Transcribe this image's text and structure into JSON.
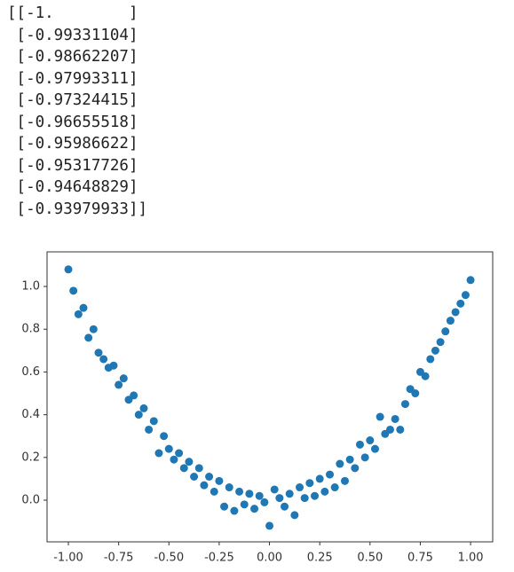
{
  "console_lines": [
    "[[-1.        ]",
    " [-0.99331104]",
    " [-0.98662207]",
    " [-0.97993311]",
    " [-0.97324415]",
    " [-0.96655518]",
    " [-0.95986622]",
    " [-0.95317726]",
    " [-0.94648829]",
    " [-0.93979933]]"
  ],
  "chart_data": {
    "type": "scatter",
    "color": "#1f77b4",
    "x": [
      -1,
      -0.975,
      -0.95,
      -0.925,
      -0.9,
      -0.875,
      -0.85,
      -0.825,
      -0.8,
      -0.775,
      -0.75,
      -0.725,
      -0.7,
      -0.675,
      -0.65,
      -0.625,
      -0.6,
      -0.575,
      -0.55,
      -0.525,
      -0.5,
      -0.475,
      -0.45,
      -0.425,
      -0.4,
      -0.375,
      -0.35,
      -0.325,
      -0.3,
      -0.275,
      -0.25,
      -0.225,
      -0.2,
      -0.175,
      -0.15,
      -0.125,
      -0.1,
      -0.075,
      -0.05,
      -0.025,
      0,
      0.025,
      0.05,
      0.075,
      0.1,
      0.125,
      0.15,
      0.175,
      0.2,
      0.225,
      0.25,
      0.275,
      0.3,
      0.325,
      0.35,
      0.375,
      0.4,
      0.425,
      0.45,
      0.475,
      0.5,
      0.525,
      0.55,
      0.575,
      0.6,
      0.625,
      0.65,
      0.675,
      0.7,
      0.725,
      0.75,
      0.775,
      0.8,
      0.825,
      0.85,
      0.875,
      0.9,
      0.925,
      0.95,
      0.975,
      1
    ],
    "values": [
      1.08,
      0.98,
      0.87,
      0.9,
      0.76,
      0.8,
      0.69,
      0.66,
      0.62,
      0.63,
      0.54,
      0.57,
      0.47,
      0.49,
      0.4,
      0.43,
      0.33,
      0.37,
      0.22,
      0.3,
      0.24,
      0.19,
      0.22,
      0.15,
      0.18,
      0.11,
      0.15,
      0.07,
      0.11,
      0.04,
      0.09,
      -0.03,
      0.06,
      -0.05,
      0.04,
      -0.02,
      0.03,
      -0.04,
      0.02,
      -0.01,
      -0.12,
      0.05,
      0.01,
      -0.03,
      0.03,
      -0.07,
      0.06,
      0.01,
      0.08,
      0.02,
      0.1,
      0.04,
      0.12,
      0.06,
      0.17,
      0.09,
      0.19,
      0.15,
      0.26,
      0.2,
      0.28,
      0.24,
      0.39,
      0.31,
      0.33,
      0.38,
      0.33,
      0.45,
      0.52,
      0.5,
      0.6,
      0.58,
      0.66,
      0.7,
      0.74,
      0.79,
      0.84,
      0.88,
      0.92,
      0.96,
      1.03
    ],
    "xlim": [
      -1.106,
      1.11
    ],
    "ylim": [
      -0.195,
      1.162
    ],
    "xticks": [
      {
        "value": -1,
        "label": "-1.00"
      },
      {
        "value": -0.75,
        "label": "-0.75"
      },
      {
        "value": -0.5,
        "label": "-0.50"
      },
      {
        "value": -0.25,
        "label": "-0.25"
      },
      {
        "value": 0,
        "label": "0.00"
      },
      {
        "value": 0.25,
        "label": "0.25"
      },
      {
        "value": 0.5,
        "label": "0.50"
      },
      {
        "value": 0.75,
        "label": "0.75"
      },
      {
        "value": 1,
        "label": "1.00"
      }
    ],
    "yticks": [
      {
        "value": 0,
        "label": "0.0"
      },
      0.2,
      0.4,
      0.6,
      0.8,
      {
        "value": 1,
        "label": "1.0"
      }
    ]
  }
}
